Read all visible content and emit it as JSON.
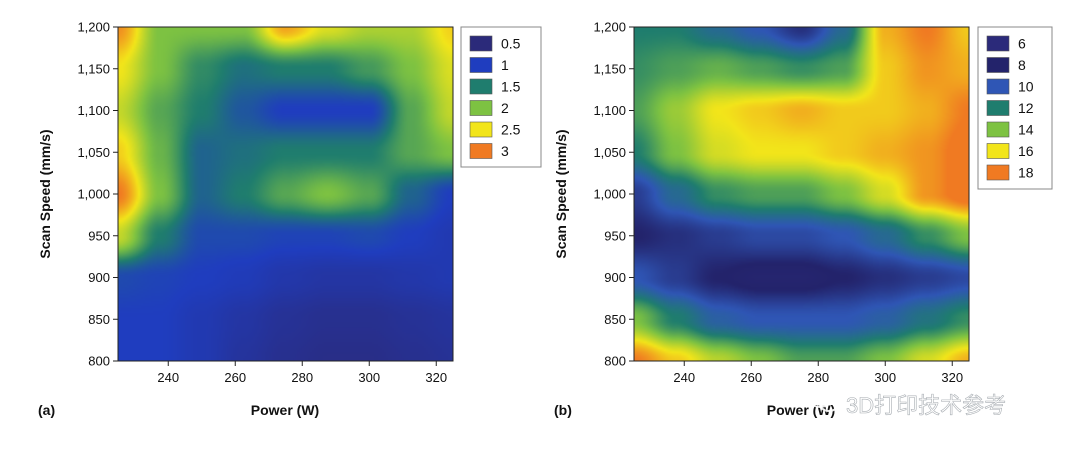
{
  "chart_data": [
    {
      "type": "heatmap",
      "panel_label": "(a)",
      "xlabel": "Power (W)",
      "ylabel": "Scan Speed (mm/s)",
      "xlim": [
        225,
        325
      ],
      "ylim": [
        800,
        1200
      ],
      "x_ticks": [
        240,
        260,
        280,
        300,
        320
      ],
      "y_ticks": [
        800,
        850,
        900,
        950,
        1000,
        1050,
        1100,
        1150,
        1200
      ],
      "y_tick_labels": [
        "800",
        "850",
        "900",
        "950",
        "1,000",
        "1,050",
        "1,100",
        "1,150",
        "1,200"
      ],
      "legend_position": "right",
      "legend": [
        {
          "label": "0.5",
          "value": 0.5,
          "color": "#2b2a7a"
        },
        {
          "label": "1",
          "value": 1.0,
          "color": "#1f3dbf"
        },
        {
          "label": "1.5",
          "value": 1.5,
          "color": "#1f7d6e"
        },
        {
          "label": "2",
          "value": 2.0,
          "color": "#7dc242"
        },
        {
          "label": "2.5",
          "value": 2.5,
          "color": "#f2e51a"
        },
        {
          "label": "3",
          "value": 3.0,
          "color": "#f07a22"
        }
      ],
      "x": [
        225,
        237.5,
        250,
        262.5,
        275,
        287.5,
        300,
        312.5,
        325
      ],
      "y": [
        800,
        850,
        900,
        950,
        1000,
        1050,
        1100,
        1150,
        1200
      ],
      "z": [
        [
          1.0,
          1.0,
          0.9,
          0.75,
          0.65,
          0.6,
          0.6,
          0.65,
          0.7
        ],
        [
          1.0,
          1.0,
          0.9,
          0.8,
          0.7,
          0.65,
          0.65,
          0.7,
          0.75
        ],
        [
          1.1,
          1.05,
          1.0,
          0.95,
          0.85,
          0.8,
          0.8,
          0.85,
          0.9
        ],
        [
          2.3,
          1.5,
          1.1,
          1.1,
          1.05,
          1.05,
          1.1,
          1.0,
          0.9
        ],
        [
          3.0,
          2.0,
          1.3,
          1.5,
          1.8,
          2.0,
          1.8,
          1.3,
          1.0
        ],
        [
          2.6,
          1.9,
          1.3,
          1.4,
          1.5,
          1.5,
          1.5,
          1.8,
          2.0
        ],
        [
          2.3,
          1.8,
          1.5,
          1.2,
          1.0,
          1.0,
          1.0,
          1.8,
          2.3
        ],
        [
          2.5,
          2.0,
          1.6,
          1.4,
          1.5,
          1.5,
          1.7,
          2.0,
          2.4
        ],
        [
          2.9,
          2.0,
          2.0,
          2.0,
          2.8,
          2.4,
          2.2,
          2.2,
          2.6
        ]
      ]
    },
    {
      "type": "heatmap",
      "panel_label": "(b)",
      "xlabel": "Power (W)",
      "ylabel": "Scan Speed (mm/s)",
      "xlim": [
        225,
        325
      ],
      "ylim": [
        800,
        1200
      ],
      "x_ticks": [
        240,
        260,
        280,
        300,
        320
      ],
      "y_ticks": [
        800,
        850,
        900,
        950,
        1000,
        1050,
        1100,
        1150,
        1200
      ],
      "y_tick_labels": [
        "800",
        "850",
        "900",
        "950",
        "1,000",
        "1,050",
        "1,100",
        "1,150",
        "1,200"
      ],
      "legend_position": "right",
      "legend": [
        {
          "label": "6",
          "value": 6,
          "color": "#2b2a7a"
        },
        {
          "label": "8",
          "value": 8,
          "color": "#23236b"
        },
        {
          "label": "10",
          "value": 10,
          "color": "#2f56b5"
        },
        {
          "label": "12",
          "value": 12,
          "color": "#1f7d6e"
        },
        {
          "label": "14",
          "value": 14,
          "color": "#7dc242"
        },
        {
          "label": "16",
          "value": 16,
          "color": "#f2e51a"
        },
        {
          "label": "18",
          "value": 18,
          "color": "#f07a22"
        }
      ],
      "x": [
        225,
        237.5,
        250,
        262.5,
        275,
        287.5,
        300,
        312.5,
        325
      ],
      "y": [
        800,
        850,
        900,
        950,
        1000,
        1050,
        1100,
        1150,
        1200
      ],
      "z": [
        [
          18.0,
          16.5,
          15.0,
          14.0,
          13.0,
          13.0,
          14.0,
          15.5,
          17.0
        ],
        [
          14.0,
          12.0,
          10.5,
          10.0,
          10.0,
          10.0,
          10.5,
          11.5,
          12.5
        ],
        [
          10.0,
          9.0,
          8.0,
          7.5,
          7.5,
          8.0,
          8.5,
          9.0,
          9.5
        ],
        [
          8.0,
          8.5,
          9.0,
          9.5,
          9.5,
          10.0,
          11.0,
          12.5,
          14.0
        ],
        [
          9.0,
          11.0,
          12.5,
          13.0,
          13.0,
          14.0,
          15.5,
          17.5,
          18.5
        ],
        [
          12.0,
          14.0,
          15.5,
          16.0,
          16.0,
          16.5,
          17.0,
          17.5,
          18.5
        ],
        [
          13.0,
          14.5,
          16.0,
          16.5,
          17.0,
          16.5,
          16.5,
          17.0,
          18.0
        ],
        [
          12.5,
          13.0,
          13.5,
          13.0,
          12.5,
          13.0,
          16.5,
          17.5,
          17.0
        ],
        [
          12.0,
          12.0,
          11.0,
          10.0,
          8.5,
          11.0,
          17.0,
          18.0,
          16.5
        ]
      ]
    }
  ],
  "watermark": {
    "text": "3D打印技术参考"
  }
}
